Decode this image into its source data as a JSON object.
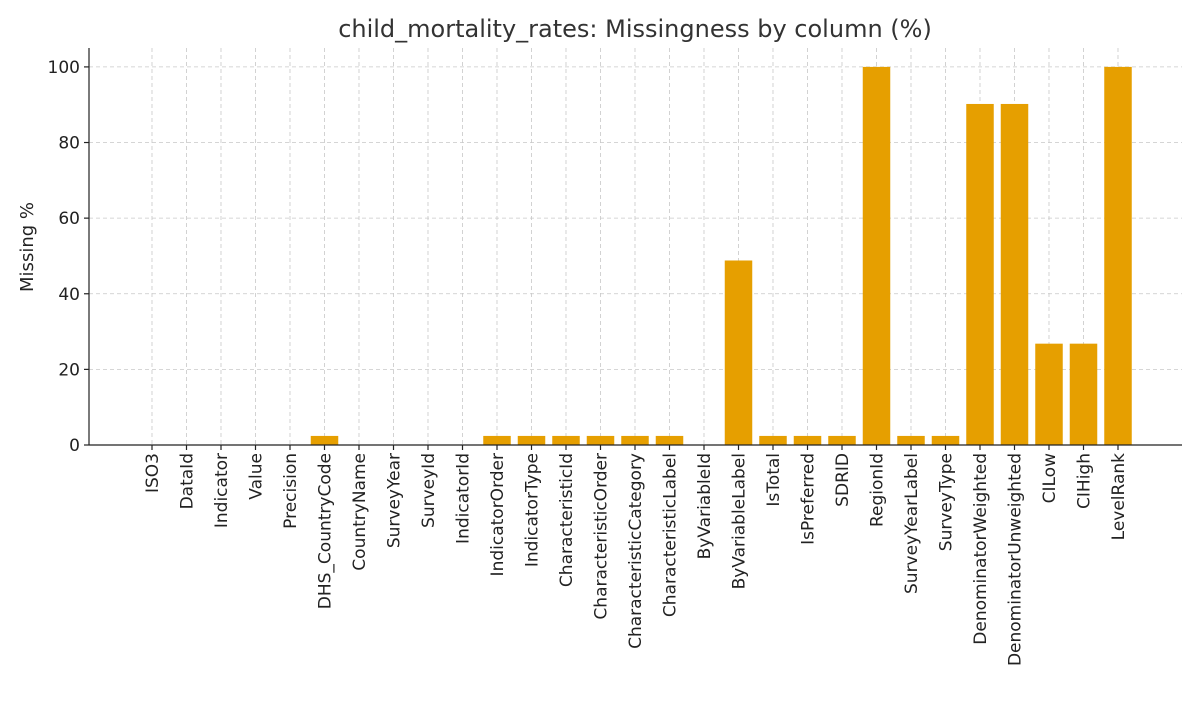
{
  "chart_data": {
    "type": "bar",
    "title": "child_mortality_rates: Missingness by column (%)",
    "xlabel": "",
    "ylabel": "Missing %",
    "ylim": [
      0,
      105
    ],
    "yticks": [
      0,
      20,
      40,
      60,
      80,
      100
    ],
    "grid": true,
    "bar_color": "#E69F00",
    "categories": [
      "ISO3",
      "DataId",
      "Indicator",
      "Value",
      "Precision",
      "DHS_CountryCode",
      "CountryName",
      "SurveyYear",
      "SurveyId",
      "IndicatorId",
      "IndicatorOrder",
      "IndicatorType",
      "CharacteristicId",
      "CharacteristicOrder",
      "CharacteristicCategory",
      "CharacteristicLabel",
      "ByVariableId",
      "ByVariableLabel",
      "IsTotal",
      "IsPreferred",
      "SDRID",
      "RegionId",
      "SurveyYearLabel",
      "SurveyType",
      "DenominatorWeighted",
      "DenominatorUnweighted",
      "CILow",
      "CIHigh",
      "LevelRank"
    ],
    "values": [
      0,
      0,
      0,
      0,
      0,
      2.4,
      0,
      0,
      0,
      0,
      2.4,
      2.4,
      2.4,
      2.4,
      2.4,
      2.4,
      0,
      48.8,
      2.4,
      2.4,
      2.4,
      100,
      2.4,
      2.4,
      90.2,
      90.2,
      26.8,
      26.8,
      100
    ]
  }
}
